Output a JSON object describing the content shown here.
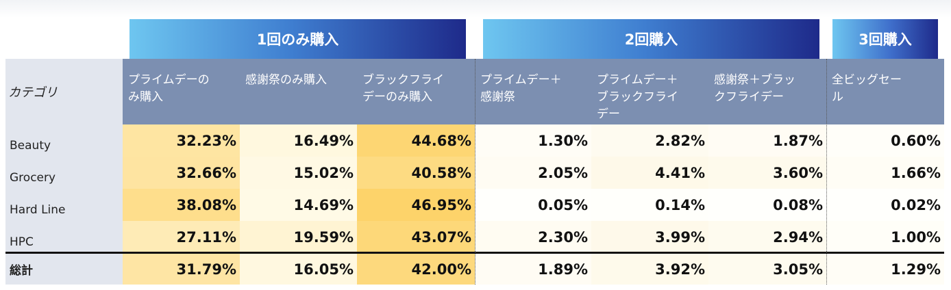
{
  "group_headers": {
    "once": "1回のみ購入",
    "twice": "2回購入",
    "three": "3回購入"
  },
  "chart_data": {
    "type": "table",
    "category_header": "カテゴリ",
    "columns": [
      "プライムデーの\nみ購入",
      "感謝祭のみ購入",
      "ブラックフライ\nデーのみ購入",
      "プライムデー＋\n感謝祭",
      "プライムデー＋\nブラックフライ\nデー",
      "感謝祭＋ブラッ\nクフライデー",
      "全ビッグセー\nル"
    ],
    "rows": [
      {
        "category": "Beauty",
        "values": [
          "32.23%",
          "16.49%",
          "44.68%",
          "1.30%",
          "2.82%",
          "1.87%",
          "0.60%"
        ]
      },
      {
        "category": "Grocery",
        "values": [
          "32.66%",
          "15.02%",
          "40.58%",
          "2.05%",
          "4.41%",
          "3.60%",
          "1.66%"
        ]
      },
      {
        "category": "Hard Line",
        "values": [
          "38.08%",
          "14.69%",
          "46.95%",
          "0.05%",
          "0.14%",
          "0.08%",
          "0.02%"
        ]
      },
      {
        "category": "HPC",
        "values": [
          "27.11%",
          "19.59%",
          "43.07%",
          "2.30%",
          "3.99%",
          "2.94%",
          "1.00%"
        ]
      }
    ],
    "total": {
      "category": "総計",
      "values": [
        "31.79%",
        "16.05%",
        "42.00%",
        "1.89%",
        "3.92%",
        "3.05%",
        "1.29%"
      ]
    },
    "heatmap_colors": {
      "low": "#fffdf6",
      "high": "#fdd266"
    }
  }
}
